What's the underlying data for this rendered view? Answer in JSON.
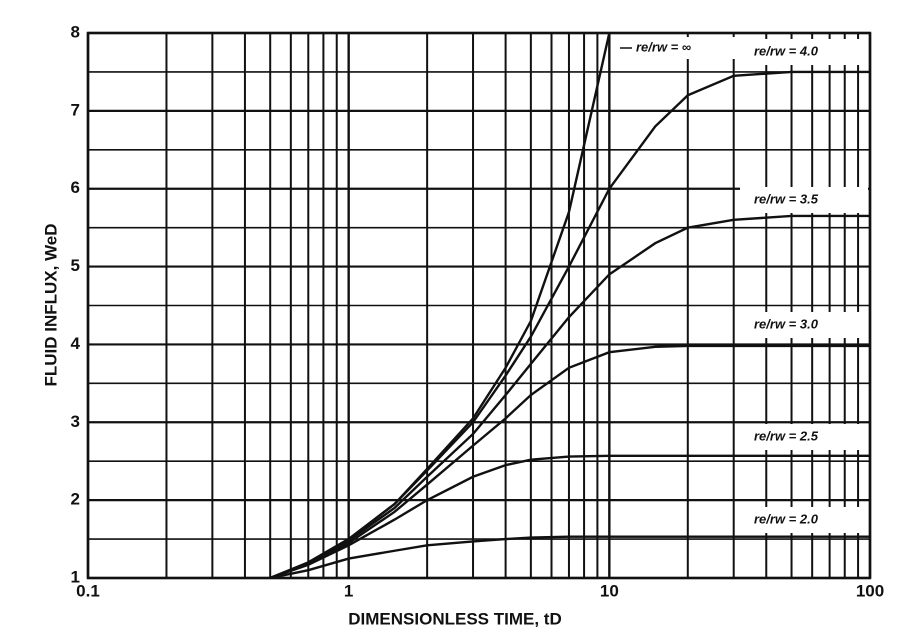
{
  "chart_data": {
    "type": "line",
    "xlabel": "DIMENSIONLESS TIME, tD",
    "ylabel": "FLUID INFLUX, WeD",
    "x": [
      0.5,
      0.7,
      1,
      1.5,
      2,
      3,
      4,
      5,
      7,
      10,
      15,
      20,
      30,
      50,
      100
    ],
    "series": [
      {
        "name": "re/rw = ∞",
        "color": "#111111",
        "values": [
          1.0,
          1.2,
          1.5,
          1.95,
          2.4,
          3.05,
          3.7,
          4.3,
          5.7,
          8.0,
          null,
          null,
          null,
          null,
          null
        ]
      },
      {
        "name": "re/rw = 4.0",
        "color": "#111111",
        "values": [
          1.0,
          1.2,
          1.5,
          1.95,
          2.38,
          3.0,
          3.6,
          4.1,
          5.0,
          6.0,
          6.8,
          7.2,
          7.45,
          7.5,
          7.5
        ]
      },
      {
        "name": "re/rw = 3.5",
        "color": "#111111",
        "values": [
          1.0,
          1.19,
          1.48,
          1.9,
          2.3,
          2.85,
          3.35,
          3.75,
          4.35,
          4.9,
          5.3,
          5.5,
          5.6,
          5.65,
          5.65
        ]
      },
      {
        "name": "re/rw = 3.0",
        "color": "#111111",
        "values": [
          1.0,
          1.18,
          1.45,
          1.85,
          2.2,
          2.7,
          3.05,
          3.35,
          3.7,
          3.9,
          3.97,
          3.98,
          3.98,
          3.98,
          3.98
        ]
      },
      {
        "name": "re/rw = 2.5",
        "color": "#111111",
        "values": [
          1.0,
          1.17,
          1.42,
          1.75,
          2.0,
          2.3,
          2.45,
          2.52,
          2.56,
          2.57,
          2.57,
          2.57,
          2.57,
          2.57,
          2.57
        ]
      },
      {
        "name": "re/rw = 2.0",
        "color": "#111111",
        "values": [
          1.0,
          1.1,
          1.25,
          1.35,
          1.42,
          1.47,
          1.5,
          1.52,
          1.53,
          1.53,
          1.53,
          1.53,
          1.53,
          1.53,
          1.53
        ]
      }
    ],
    "xscale": "log",
    "xlim": [
      0.1,
      100
    ],
    "xticks": [
      0.1,
      1,
      10,
      100
    ],
    "xminor": [
      0.2,
      0.3,
      0.4,
      0.5,
      0.6,
      0.7,
      0.8,
      0.9,
      2,
      3,
      4,
      5,
      6,
      7,
      8,
      9,
      20,
      30,
      40,
      50,
      60,
      70,
      80,
      90
    ],
    "ylim": [
      1,
      8
    ],
    "yticks": [
      1,
      2,
      3,
      4,
      5,
      6,
      7,
      8
    ],
    "yminor": [
      1.5,
      2.5,
      3.5,
      4.5,
      5.5,
      6.5,
      7.5
    ],
    "grid": true
  }
}
